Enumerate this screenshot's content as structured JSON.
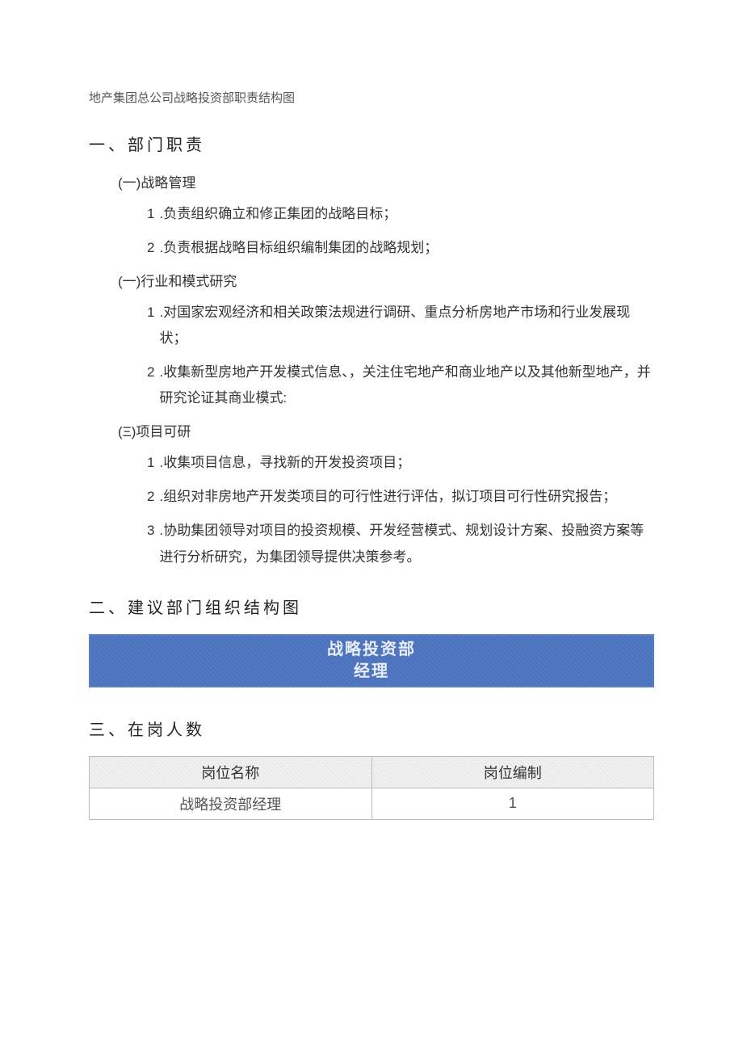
{
  "doc_title": "地产集团总公司战略投资部职责结构图",
  "section1": {
    "heading": "一、部门职责",
    "sub1": {
      "heading": "(一)战略管理",
      "items": [
        {
          "num": "1",
          "text": ".负责组织确立和修正集团的战略目标；"
        },
        {
          "num": "2",
          "text": ".负责根据战略目标组织编制集团的战略规划；"
        }
      ]
    },
    "sub2": {
      "heading": "(一)行业和模式研究",
      "items": [
        {
          "num": "1",
          "text": ".对国家宏观经济和相关政策法规进行调研、重点分析房地产市场和行业发展现状；"
        },
        {
          "num": "2",
          "text": ".收集新型房地产开发模式信息、，关注住宅地产和商业地产以及其他新型地产，并研究论证其商业模式:"
        }
      ]
    },
    "sub3": {
      "heading": "(Ξ)项目可研",
      "items": [
        {
          "num": "1",
          "text": ".收集项目信息，寻找新的开发投资项目；"
        },
        {
          "num": "2",
          "text": ".组织对非房地产开发类项目的可行性进行评估，拟订项目可行性研究报告；"
        },
        {
          "num": "3",
          "text": ".协助集团领导对项目的投资规模、开发经营模式、规划设计方案、投融资方案等进行分析研究，为集团领导提供决策参考。"
        }
      ]
    }
  },
  "section2": {
    "heading": "二、建议部门组织结构图",
    "org_box": {
      "line1": "战略投资部",
      "line2": "经理",
      "bg_color": "#4a72bd",
      "border_color": "#5a7fc4",
      "text_color": "#e8edf7"
    }
  },
  "section3": {
    "heading": "三、在岗人数",
    "table": {
      "columns": [
        "岗位名称",
        "岗位编制"
      ],
      "rows": [
        [
          "战略投资部经理",
          "1"
        ]
      ],
      "header_bg": "#f0f0f0",
      "border_color": "#bbbbbb"
    }
  }
}
